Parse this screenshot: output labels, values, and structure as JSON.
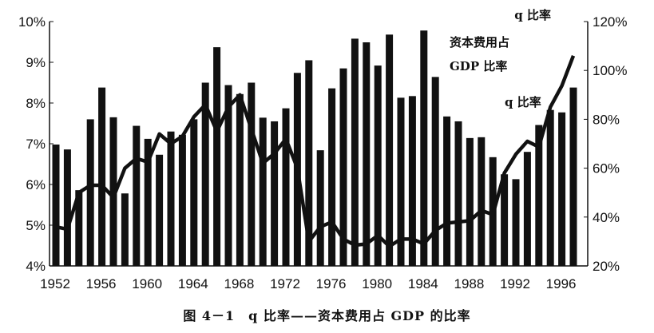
{
  "chart_data": {
    "type": "bar+line",
    "caption": "图 4－1　q 比率——资本费用占 GDP 的比率",
    "x": [
      1952,
      1953,
      1954,
      1955,
      1956,
      1957,
      1958,
      1959,
      1960,
      1961,
      1962,
      1963,
      1964,
      1965,
      1966,
      1967,
      1968,
      1969,
      1970,
      1971,
      1972,
      1973,
      1974,
      1975,
      1976,
      1977,
      1978,
      1979,
      1980,
      1981,
      1982,
      1983,
      1984,
      1985,
      1986,
      1987,
      1988,
      1989,
      1990,
      1991,
      1992,
      1993,
      1994,
      1995,
      1996,
      1997
    ],
    "x_tick_labels": [
      "1952",
      "1956",
      "1960",
      "1964",
      "1968",
      "1972",
      "1976",
      "1980",
      "1984",
      "1988",
      "1992",
      "1996"
    ],
    "left_axis": {
      "ylim": [
        4,
        10
      ],
      "tick_labels": [
        "10%",
        "9%",
        "8%",
        "7%",
        "6%",
        "5%",
        "4%"
      ]
    },
    "right_axis": {
      "title": "q 比率",
      "ylim": [
        20,
        120
      ],
      "tick_labels": [
        "120%",
        "100%",
        "80%",
        "60%",
        "40%",
        "20%"
      ]
    },
    "series": [
      {
        "name": "资本费用占 GDP 比率",
        "label_lines": [
          "资本费用占",
          "GDP 比率"
        ],
        "type": "bar",
        "axis": "left",
        "unit": "%",
        "color": "#111111",
        "values": [
          6.98,
          6.86,
          5.86,
          7.6,
          8.38,
          7.65,
          5.78,
          7.44,
          7.12,
          6.73,
          7.3,
          7.22,
          7.6,
          8.5,
          9.37,
          8.44,
          8.22,
          8.5,
          7.64,
          7.55,
          7.87,
          8.74,
          9.05,
          6.84,
          8.36,
          8.85,
          9.58,
          9.49,
          8.92,
          9.68,
          8.13,
          8.17,
          9.78,
          8.64,
          7.67,
          7.55,
          7.14,
          7.16,
          6.67,
          6.25,
          6.13,
          6.8,
          7.46,
          7.83,
          7.77,
          8.38
        ]
      },
      {
        "name": "q 比率",
        "type": "line",
        "axis": "right",
        "unit": "%",
        "color": "#111111",
        "values": [
          36,
          35,
          50,
          53,
          53,
          48,
          60,
          64,
          62.5,
          74,
          70,
          73,
          81,
          86,
          75,
          85,
          90,
          76,
          62,
          66,
          72,
          60,
          30,
          36,
          38,
          31,
          28.5,
          29,
          32.5,
          28,
          31,
          31,
          29,
          34.5,
          37.5,
          38,
          38.5,
          42.7,
          41,
          58,
          65.7,
          71,
          68.7,
          85,
          93.7,
          106
        ]
      }
    ]
  }
}
